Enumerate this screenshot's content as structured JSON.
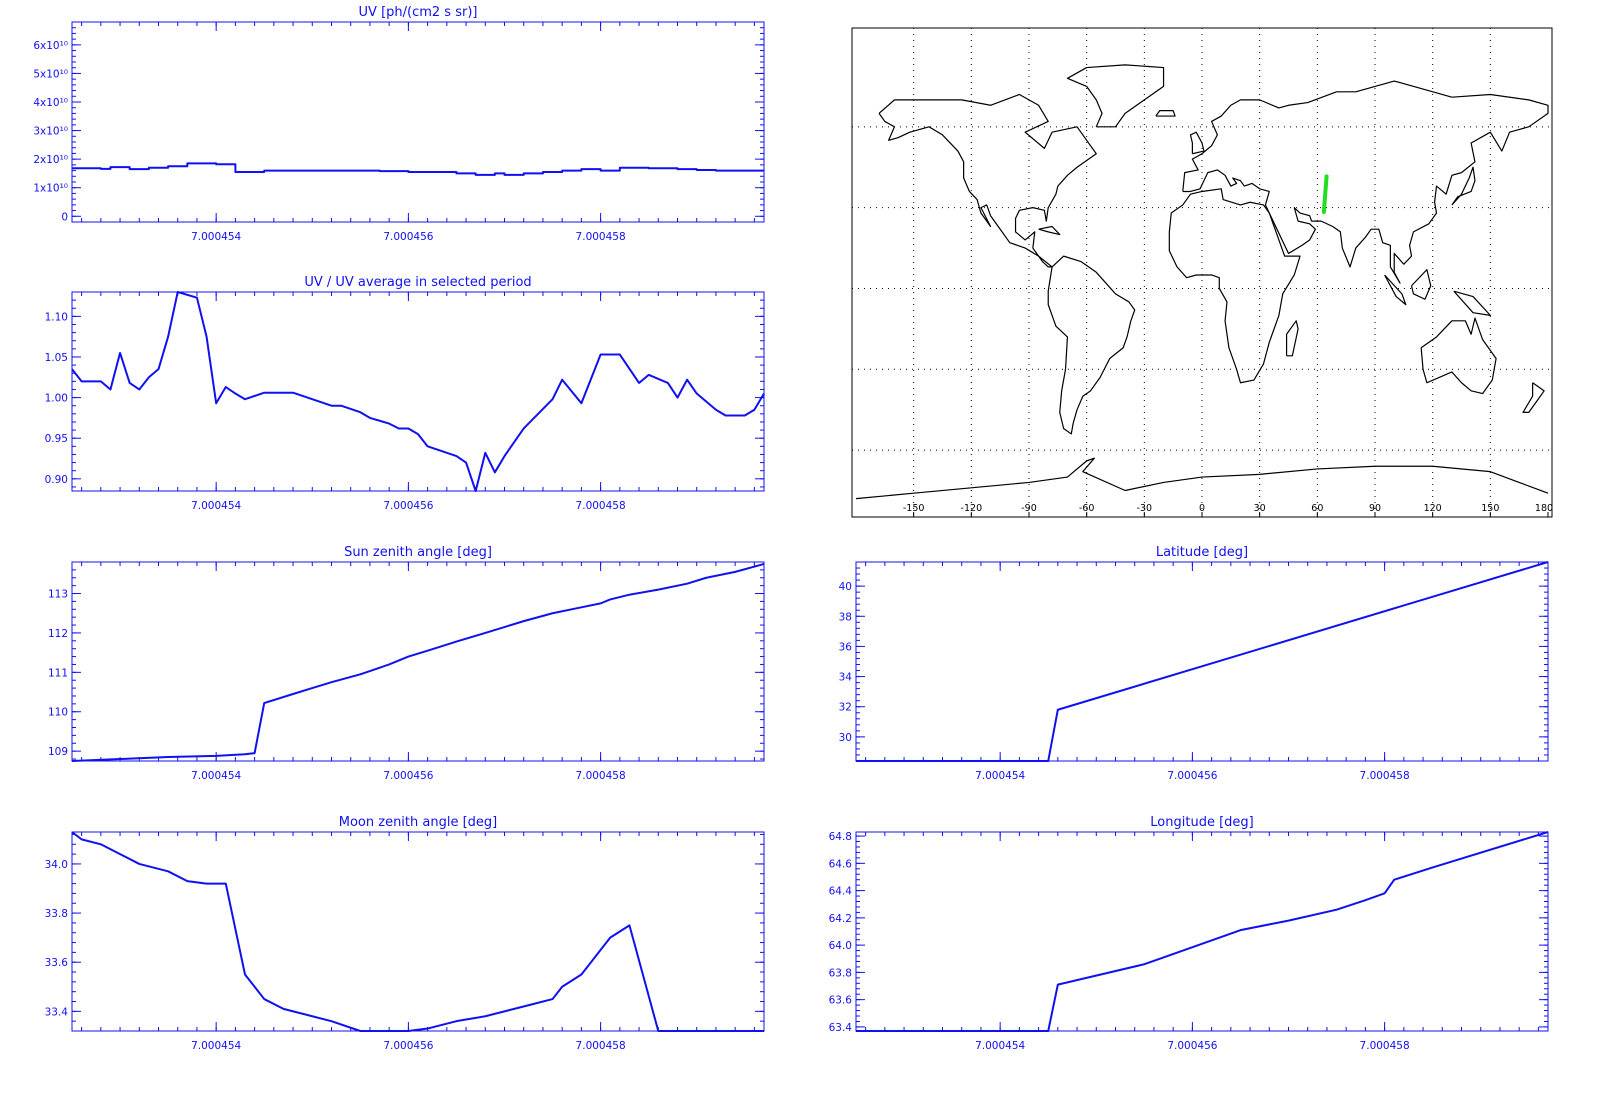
{
  "colors": {
    "plot": "#1010f0",
    "track": "#22dd22",
    "map": "#000000",
    "background": "#ffffff"
  },
  "x_axis": {
    "range": [
      7.0004525,
      7.0004597
    ],
    "ticks": [
      "7.000454",
      "7.000456",
      "7.000458"
    ],
    "tick_values": [
      7.000454,
      7.000456,
      7.000458
    ]
  },
  "chart_data": [
    {
      "type": "line",
      "id": "uv",
      "step": true,
      "title": "UV [ph/(cm2 s sr)]",
      "ylim": [
        -2000000000.0,
        68000000000.0
      ],
      "mantissa_ticks": true,
      "ytick_labels": [
        "0",
        "1x10¹⁰",
        "2x10¹⁰",
        "3x10¹⁰",
        "4x10¹⁰",
        "5x10¹⁰",
        "6x10¹⁰"
      ],
      "ytick_values": [
        0,
        10000000000.0,
        20000000000.0,
        30000000000.0,
        40000000000.0,
        50000000000.0,
        60000000000.0
      ],
      "x": [
        7.0004525,
        7.0004528,
        7.0004529,
        7.0004531,
        7.0004533,
        7.0004535,
        7.0004537,
        7.000454,
        7.0004542,
        7.0004545,
        7.0004548,
        7.000455,
        7.0004552,
        7.0004555,
        7.0004557,
        7.000456,
        7.0004562,
        7.0004565,
        7.0004567,
        7.0004569,
        7.000457,
        7.0004572,
        7.0004574,
        7.0004576,
        7.0004578,
        7.000458,
        7.0004582,
        7.0004585,
        7.0004588,
        7.000459,
        7.0004592,
        7.0004595,
        7.0004597
      ],
      "y": [
        16800000000.0,
        16600000000.0,
        17200000000.0,
        16500000000.0,
        17000000000.0,
        17500000000.0,
        18500000000.0,
        18200000000.0,
        15500000000.0,
        16000000000.0,
        16000000000.0,
        16000000000.0,
        16000000000.0,
        16000000000.0,
        15800000000.0,
        15500000000.0,
        15500000000.0,
        15000000000.0,
        14500000000.0,
        15000000000.0,
        14500000000.0,
        15000000000.0,
        15500000000.0,
        16000000000.0,
        16500000000.0,
        16000000000.0,
        17000000000.0,
        16800000000.0,
        16500000000.0,
        16200000000.0,
        16000000000.0,
        16000000000.0,
        16000000000.0
      ]
    },
    {
      "type": "line",
      "id": "uv-ratio",
      "title": "UV / UV average in selected period",
      "ylim": [
        0.885,
        1.13
      ],
      "ytick_labels": [
        "0.90",
        "0.95",
        "1.00",
        "1.05",
        "1.10"
      ],
      "ytick_values": [
        0.9,
        0.95,
        1.0,
        1.05,
        1.1
      ],
      "x": [
        7.0004525,
        7.0004526,
        7.0004528,
        7.0004529,
        7.000453,
        7.0004531,
        7.0004532,
        7.0004533,
        7.0004534,
        7.0004535,
        7.0004536,
        7.0004538,
        7.0004539,
        7.000454,
        7.0004541,
        7.0004542,
        7.0004543,
        7.0004545,
        7.0004546,
        7.0004548,
        7.000455,
        7.0004552,
        7.0004553,
        7.0004555,
        7.0004556,
        7.0004558,
        7.0004559,
        7.000456,
        7.0004561,
        7.0004562,
        7.0004565,
        7.0004566,
        7.0004567,
        7.0004568,
        7.0004569,
        7.000457,
        7.0004572,
        7.0004575,
        7.0004576,
        7.0004578,
        7.000458,
        7.0004581,
        7.0004582,
        7.0004584,
        7.0004585,
        7.0004587,
        7.0004588,
        7.0004589,
        7.000459,
        7.0004592,
        7.0004593,
        7.0004595,
        7.0004596,
        7.0004597
      ],
      "y": [
        1.035,
        1.02,
        1.02,
        1.01,
        1.055,
        1.018,
        1.01,
        1.025,
        1.035,
        1.075,
        1.13,
        1.123,
        1.075,
        0.993,
        1.013,
        1.005,
        0.998,
        1.006,
        1.006,
        1.006,
        0.998,
        0.99,
        0.99,
        0.982,
        0.975,
        0.968,
        0.962,
        0.962,
        0.955,
        0.94,
        0.928,
        0.92,
        0.885,
        0.932,
        0.908,
        0.928,
        0.962,
        0.998,
        1.022,
        0.993,
        1.053,
        1.053,
        1.053,
        1.018,
        1.028,
        1.018,
        1.0,
        1.022,
        1.005,
        0.985,
        0.978,
        0.978,
        0.985,
        1.005
      ]
    },
    {
      "type": "line",
      "id": "sun-zenith",
      "title": "Sun zenith angle [deg]",
      "ylim": [
        108.75,
        113.8
      ],
      "ytick_labels": [
        "109",
        "110",
        "111",
        "112",
        "113"
      ],
      "ytick_values": [
        109,
        110,
        111,
        112,
        113
      ],
      "x": [
        7.0004525,
        7.000453,
        7.0004535,
        7.000454,
        7.0004543,
        7.0004544,
        7.0004545,
        7.0004548,
        7.000455,
        7.0004552,
        7.0004555,
        7.0004558,
        7.000456,
        7.0004562,
        7.0004565,
        7.0004568,
        7.000457,
        7.0004572,
        7.0004575,
        7.0004578,
        7.000458,
        7.0004581,
        7.0004583,
        7.0004586,
        7.0004589,
        7.0004591,
        7.0004594,
        7.0004597
      ],
      "y": [
        108.75,
        108.8,
        108.85,
        108.88,
        108.92,
        108.95,
        110.22,
        110.45,
        110.6,
        110.75,
        110.95,
        111.2,
        111.4,
        111.55,
        111.78,
        112.0,
        112.15,
        112.3,
        112.5,
        112.65,
        112.75,
        112.85,
        112.97,
        113.1,
        113.25,
        113.4,
        113.55,
        113.75
      ]
    },
    {
      "type": "line",
      "id": "moon-zenith",
      "title": "Moon zenith angle [deg]",
      "ylim": [
        33.32,
        34.13
      ],
      "ytick_labels": [
        "33.4",
        "33.6",
        "33.8",
        "34.0"
      ],
      "ytick_values": [
        33.4,
        33.6,
        33.8,
        34.0
      ],
      "x": [
        7.0004525,
        7.0004526,
        7.0004528,
        7.000453,
        7.0004532,
        7.0004535,
        7.0004537,
        7.0004539,
        7.0004541,
        7.0004543,
        7.0004544,
        7.0004545,
        7.0004547,
        7.000455,
        7.0004552,
        7.0004555,
        7.0004558,
        7.000456,
        7.0004562,
        7.0004565,
        7.0004568,
        7.000457,
        7.0004573,
        7.0004575,
        7.0004576,
        7.0004578,
        7.0004579,
        7.000458,
        7.0004581,
        7.0004583,
        7.0004586,
        7.0004588,
        7.000459,
        7.0004592,
        7.0004594,
        7.0004596,
        7.0004597
      ],
      "y": [
        34.13,
        34.1,
        34.08,
        34.04,
        34.0,
        33.97,
        33.93,
        33.92,
        33.92,
        33.55,
        33.5,
        33.45,
        33.41,
        33.38,
        33.36,
        33.32,
        33.32,
        33.32,
        33.33,
        33.36,
        33.38,
        33.4,
        33.43,
        33.45,
        33.5,
        33.55,
        33.6,
        33.65,
        33.7,
        33.75,
        33.32,
        33.32,
        33.32,
        33.32,
        33.32,
        33.32,
        33.32
      ]
    },
    {
      "type": "line",
      "id": "latitude",
      "title": "Latitude [deg]",
      "ylim": [
        28.4,
        41.6
      ],
      "ytick_labels": [
        "30",
        "32",
        "34",
        "36",
        "38",
        "40"
      ],
      "ytick_values": [
        30,
        32,
        34,
        36,
        38,
        40
      ],
      "x": [
        7.0004525,
        7.0004545,
        7.0004546,
        7.0004597
      ],
      "y": [
        28.4,
        28.4,
        31.8,
        41.6
      ]
    },
    {
      "type": "line",
      "id": "longitude",
      "title": "Longitude [deg]",
      "ylim": [
        63.37,
        64.83
      ],
      "ytick_labels": [
        "63.4",
        "63.6",
        "63.8",
        "64.0",
        "64.2",
        "64.4",
        "64.6",
        "64.8"
      ],
      "ytick_values": [
        63.4,
        63.6,
        63.8,
        64.0,
        64.2,
        64.4,
        64.6,
        64.8
      ],
      "x": [
        7.0004525,
        7.0004545,
        7.0004546,
        7.0004555,
        7.0004557,
        7.0004565,
        7.000457,
        7.0004575,
        7.0004578,
        7.000458,
        7.0004581,
        7.0004585,
        7.0004597
      ],
      "y": [
        63.37,
        63.37,
        63.71,
        63.86,
        63.91,
        64.11,
        64.18,
        64.26,
        64.33,
        64.38,
        64.48,
        64.57,
        64.83
      ]
    }
  ],
  "map": {
    "xtick_labels": [
      "-150",
      "-120",
      "-90",
      "-60",
      "-30",
      "0",
      "30",
      "60",
      "90",
      "120",
      "150",
      "180"
    ],
    "xtick_values": [
      -150,
      -120,
      -90,
      -60,
      -30,
      0,
      30,
      60,
      90,
      120,
      150,
      180
    ],
    "lon_range": [
      -180,
      180
    ],
    "lat_range": [
      -90,
      90
    ],
    "grid_lon": [
      -150,
      -120,
      -90,
      -60,
      -30,
      0,
      30,
      60,
      90,
      120,
      150
    ],
    "grid_lat": [
      -60,
      -30,
      0,
      30,
      60
    ],
    "track": {
      "lon": [
        63.4,
        64.8
      ],
      "lat": [
        28.4,
        41.6
      ]
    }
  }
}
